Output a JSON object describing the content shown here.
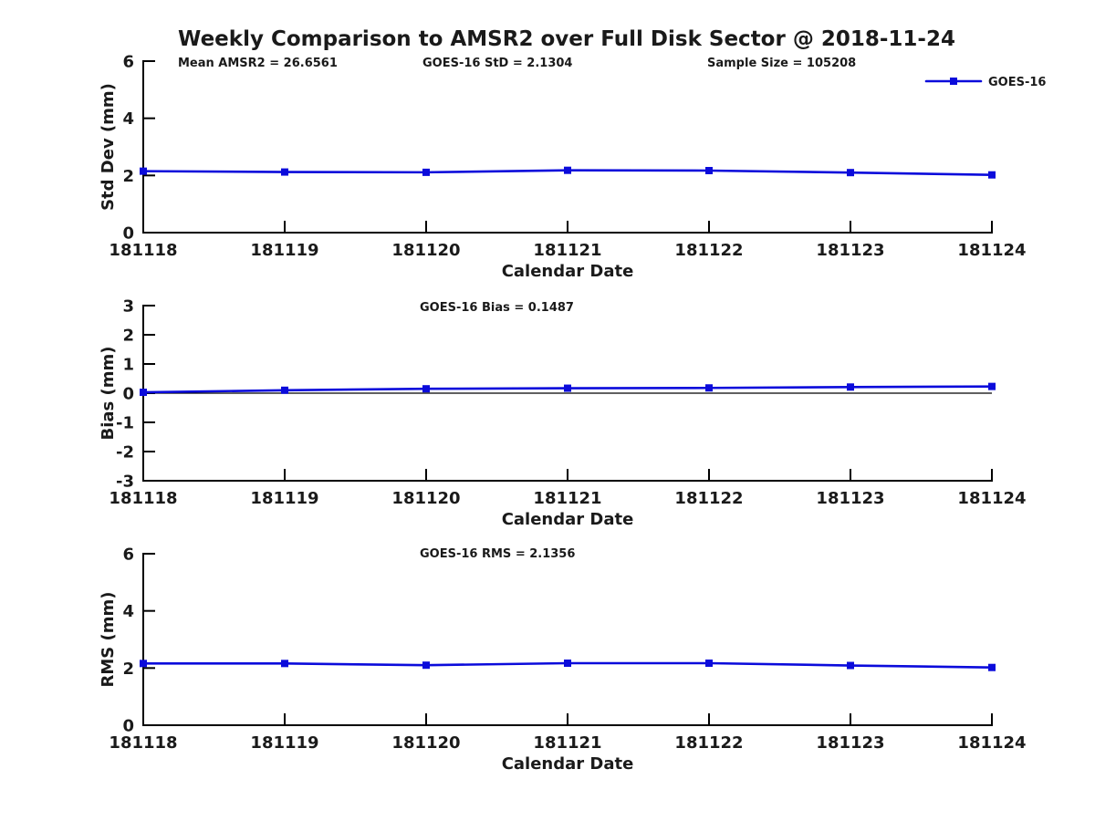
{
  "title": "Weekly Comparison to AMSR2 over Full Disk Sector @ 2018-11-24",
  "legend": {
    "label": "GOES-16",
    "marker": "square"
  },
  "colors": {
    "accent": "#0b0bdb",
    "axis": "#000000",
    "text": "#1a1a1a"
  },
  "chart_data": [
    {
      "type": "line",
      "ylabel": "Std Dev (mm)",
      "xlabel": "Calendar Date",
      "ylim": [
        0,
        6
      ],
      "yticks": [
        0,
        2,
        4,
        6
      ],
      "grid": false,
      "annotations": [
        "Mean AMSR2 = 26.6561",
        "GOES-16 StD = 2.1304",
        "Sample Size = 105208"
      ],
      "categories": [
        "181118",
        "181119",
        "181120",
        "181121",
        "181122",
        "181123",
        "181124"
      ],
      "series": [
        {
          "name": "GOES-16",
          "marker": "square",
          "values": [
            2.15,
            2.12,
            2.11,
            2.18,
            2.17,
            2.1,
            2.02
          ]
        }
      ],
      "legend_position": "top-right"
    },
    {
      "type": "line",
      "ylabel": "Bias (mm)",
      "xlabel": "Calendar Date",
      "ylim": [
        -3,
        3
      ],
      "yticks": [
        3,
        2,
        1,
        0,
        -1,
        -2,
        -3
      ],
      "grid": false,
      "zero_line": true,
      "annotations": [
        "GOES-16 Bias  = 0.1487"
      ],
      "categories": [
        "181118",
        "181119",
        "181120",
        "181121",
        "181122",
        "181123",
        "181124"
      ],
      "series": [
        {
          "name": "GOES-16",
          "marker": "square",
          "values": [
            0.03,
            0.1,
            0.15,
            0.17,
            0.18,
            0.21,
            0.23
          ]
        }
      ]
    },
    {
      "type": "line",
      "ylabel": "RMS (mm)",
      "xlabel": "Calendar Date",
      "ylim": [
        0,
        6
      ],
      "yticks": [
        0,
        2,
        4,
        6
      ],
      "grid": false,
      "annotations": [
        "GOES-16 RMS = 2.1356"
      ],
      "categories": [
        "181118",
        "181119",
        "181120",
        "181121",
        "181122",
        "181123",
        "181124"
      ],
      "series": [
        {
          "name": "GOES-16",
          "marker": "square",
          "values": [
            2.16,
            2.16,
            2.1,
            2.17,
            2.17,
            2.09,
            2.02
          ]
        }
      ]
    }
  ]
}
